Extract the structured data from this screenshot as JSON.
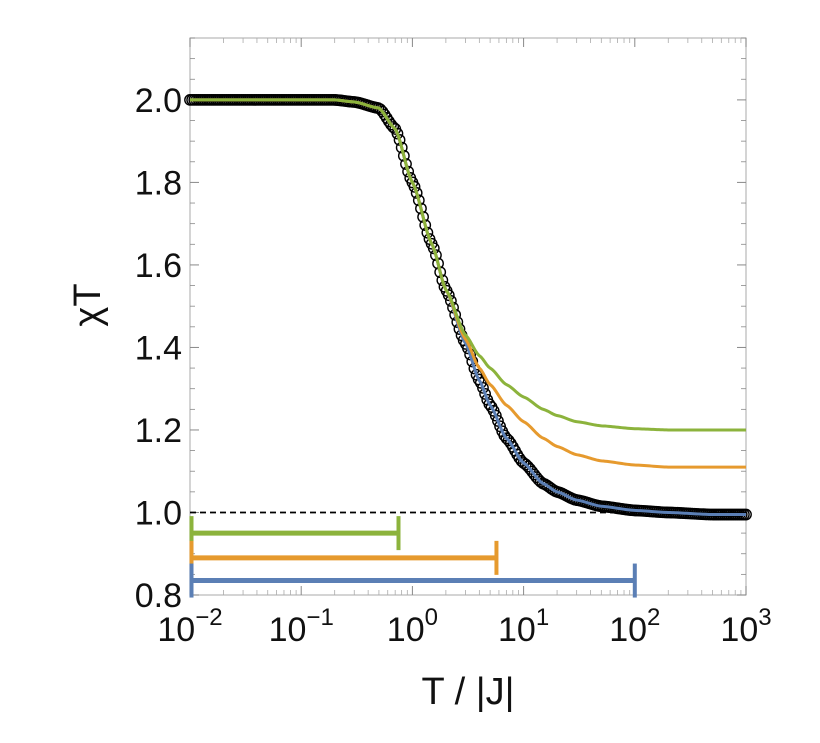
{
  "chart_data": {
    "type": "line",
    "title": "",
    "xlabel": "T / |J|",
    "ylabel": "χT",
    "xscale": "log",
    "xlim": [
      0.01,
      1000
    ],
    "ylim": [
      0.8,
      2.15
    ],
    "grid": false,
    "legend": "none",
    "x_tick_labels": [
      {
        "value": 0.01,
        "base": "10",
        "exp": "−2"
      },
      {
        "value": 0.1,
        "base": "10",
        "exp": "−1"
      },
      {
        "value": 1,
        "base": "10",
        "exp": "0"
      },
      {
        "value": 10,
        "base": "10",
        "exp": "1"
      },
      {
        "value": 100,
        "base": "10",
        "exp": "2"
      },
      {
        "value": 1000,
        "base": "10",
        "exp": "3"
      }
    ],
    "y_tick_labels": [
      {
        "value": 0.8,
        "label": "0.8"
      },
      {
        "value": 1.0,
        "label": "1.0"
      },
      {
        "value": 1.2,
        "label": "1.2"
      },
      {
        "value": 1.4,
        "label": "1.4"
      },
      {
        "value": 1.6,
        "label": "1.6"
      },
      {
        "value": 1.8,
        "label": "1.8"
      },
      {
        "value": 2.0,
        "label": "2.0"
      }
    ],
    "reference_line": {
      "y": 1.0,
      "style": "dashed",
      "color": "#000000"
    },
    "markers_series": {
      "style": "open-circle",
      "color": "#000000",
      "x": [
        0.01,
        0.05,
        0.1,
        0.2,
        0.3,
        0.5,
        0.7,
        1,
        1.5,
        2,
        3,
        4,
        5,
        7,
        10,
        15,
        20,
        30,
        50,
        100,
        200,
        500,
        1000
      ],
      "y": [
        2.0,
        2.0,
        2.0,
        2.0,
        1.995,
        1.98,
        1.93,
        1.8,
        1.65,
        1.54,
        1.41,
        1.32,
        1.26,
        1.18,
        1.12,
        1.07,
        1.05,
        1.03,
        1.015,
        1.005,
        1.0,
        0.995,
        0.995
      ]
    },
    "series": [
      {
        "color": "#5b7fb5",
        "x": [
          0.01,
          0.05,
          0.1,
          0.2,
          0.3,
          0.5,
          0.7,
          1,
          1.5,
          2,
          3,
          4,
          5,
          7,
          10,
          15,
          20,
          30,
          50,
          100,
          200,
          500,
          1000
        ],
        "y": [
          2.0,
          2.0,
          2.0,
          2.0,
          1.995,
          1.98,
          1.93,
          1.8,
          1.65,
          1.54,
          1.41,
          1.32,
          1.26,
          1.18,
          1.12,
          1.07,
          1.05,
          1.03,
          1.015,
          1.005,
          1.0,
          0.995,
          0.995
        ]
      },
      {
        "color": "#e69a2e",
        "x": [
          0.01,
          0.05,
          0.1,
          0.2,
          0.3,
          0.5,
          0.7,
          1,
          1.5,
          2,
          3,
          4,
          5,
          7,
          10,
          15,
          20,
          30,
          50,
          100,
          200,
          500,
          1000
        ],
        "y": [
          2.0,
          2.0,
          2.0,
          2.0,
          1.995,
          1.98,
          1.93,
          1.8,
          1.65,
          1.54,
          1.42,
          1.35,
          1.31,
          1.26,
          1.22,
          1.18,
          1.16,
          1.14,
          1.125,
          1.115,
          1.11,
          1.11,
          1.11
        ]
      },
      {
        "color": "#8cb33c",
        "x": [
          0.01,
          0.05,
          0.1,
          0.2,
          0.3,
          0.5,
          0.7,
          1,
          1.5,
          2,
          3,
          4,
          5,
          7,
          10,
          15,
          20,
          30,
          50,
          100,
          200,
          500,
          1000
        ],
        "y": [
          2.0,
          2.0,
          2.0,
          2.0,
          1.995,
          1.98,
          1.93,
          1.8,
          1.65,
          1.54,
          1.43,
          1.38,
          1.35,
          1.31,
          1.28,
          1.25,
          1.235,
          1.22,
          1.21,
          1.203,
          1.2,
          1.2,
          1.2
        ]
      }
    ],
    "range_bars": [
      {
        "color": "#8cb33c",
        "x_start": 0.01,
        "x_end": 0.75,
        "y": 0.95
      },
      {
        "color": "#e69a2e",
        "x_start": 0.01,
        "x_end": 5.7,
        "y": 0.89
      },
      {
        "color": "#5b7fb5",
        "x_start": 0.01,
        "x_end": 100,
        "y": 0.835
      }
    ]
  }
}
